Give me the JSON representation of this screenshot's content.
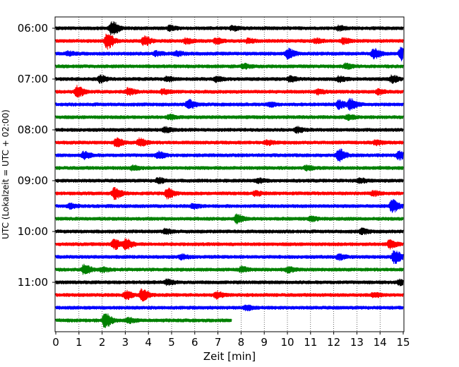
{
  "chart_data": {
    "type": "line",
    "title": "",
    "xlabel": "Zeit  [min]",
    "ylabel": "UTC (Lokalzeit = UTC + 02:00)",
    "xlim": [
      0,
      15
    ],
    "xticks": [
      0,
      1,
      2,
      3,
      4,
      5,
      6,
      7,
      8,
      9,
      10,
      11,
      12,
      13,
      14,
      15
    ],
    "y_tick_labels": [
      "06:00",
      "07:00",
      "08:00",
      "09:00",
      "10:00",
      "11:00"
    ],
    "grid": "vertical dotted lines at each minute",
    "trace_colors": [
      "#000000",
      "#ff0000",
      "#0000ff",
      "#008000"
    ],
    "traces": [
      {
        "label": "06:00",
        "color": "#000000",
        "end_min": 15,
        "events": [
          [
            2.4,
            9
          ],
          [
            4.9,
            2.5
          ],
          [
            7.6,
            2.5
          ],
          [
            12.2,
            2.5
          ]
        ]
      },
      {
        "label": "06:15",
        "color": "#ff0000",
        "end_min": 15,
        "events": [
          [
            2.2,
            10
          ],
          [
            3.8,
            6
          ],
          [
            5.6,
            3
          ],
          [
            6.9,
            3
          ],
          [
            8.3,
            2.5
          ],
          [
            11.2,
            2.5
          ],
          [
            12.4,
            3
          ]
        ]
      },
      {
        "label": "06:30",
        "color": "#0000ff",
        "end_min": 15,
        "events": [
          [
            0.5,
            2.5
          ],
          [
            4.3,
            2.5
          ],
          [
            5.2,
            2.5
          ],
          [
            10.0,
            6
          ],
          [
            13.7,
            6
          ],
          [
            14.9,
            9
          ]
        ]
      },
      {
        "label": "06:45",
        "color": "#008000",
        "end_min": 15,
        "events": [
          [
            12.5,
            3
          ],
          [
            8.1,
            2.5
          ]
        ]
      },
      {
        "label": "07:00",
        "color": "#000000",
        "end_min": 15,
        "events": [
          [
            1.9,
            4
          ],
          [
            4.8,
            2.5
          ],
          [
            6.9,
            3
          ],
          [
            10.1,
            3
          ],
          [
            12.2,
            3
          ],
          [
            14.5,
            4
          ]
        ]
      },
      {
        "label": "07:15",
        "color": "#ff0000",
        "end_min": 15,
        "events": [
          [
            0.9,
            7
          ],
          [
            3.1,
            4
          ],
          [
            4.6,
            2.5
          ],
          [
            11.3,
            3
          ],
          [
            13.9,
            2.5
          ]
        ]
      },
      {
        "label": "07:30",
        "color": "#0000ff",
        "end_min": 15,
        "events": [
          [
            5.7,
            6
          ],
          [
            9.2,
            2.5
          ],
          [
            12.2,
            5
          ],
          [
            12.7,
            7
          ]
        ]
      },
      {
        "label": "07:45",
        "color": "#008000",
        "end_min": 15,
        "events": [
          [
            4.9,
            2.5
          ],
          [
            12.6,
            2.5
          ]
        ]
      },
      {
        "label": "08:00",
        "color": "#000000",
        "end_min": 15,
        "events": [
          [
            4.7,
            3
          ],
          [
            10.4,
            3
          ]
        ]
      },
      {
        "label": "08:15",
        "color": "#ff0000",
        "end_min": 15,
        "events": [
          [
            2.6,
            5
          ],
          [
            3.6,
            5
          ],
          [
            9.1,
            2.5
          ],
          [
            13.8,
            2.5
          ]
        ]
      },
      {
        "label": "08:30",
        "color": "#0000ff",
        "end_min": 15,
        "events": [
          [
            1.2,
            4
          ],
          [
            4.4,
            4
          ],
          [
            12.2,
            8
          ],
          [
            14.8,
            5
          ]
        ]
      },
      {
        "label": "08:45",
        "color": "#008000",
        "end_min": 15,
        "events": [
          [
            3.3,
            2.5
          ],
          [
            10.8,
            2.5
          ]
        ]
      },
      {
        "label": "09:00",
        "color": "#000000",
        "end_min": 15,
        "events": [
          [
            4.4,
            3
          ],
          [
            8.7,
            2.5
          ],
          [
            13.1,
            2.5
          ]
        ]
      },
      {
        "label": "09:15",
        "color": "#ff0000",
        "end_min": 15,
        "events": [
          [
            2.5,
            7
          ],
          [
            4.8,
            6
          ],
          [
            8.6,
            2.5
          ],
          [
            13.7,
            2.5
          ]
        ]
      },
      {
        "label": "09:30",
        "color": "#0000ff",
        "end_min": 15,
        "events": [
          [
            0.6,
            2.5
          ],
          [
            5.9,
            2.5
          ],
          [
            14.5,
            8
          ]
        ]
      },
      {
        "label": "09:45",
        "color": "#008000",
        "end_min": 15,
        "events": [
          [
            7.8,
            5
          ],
          [
            11.0,
            2.5
          ]
        ]
      },
      {
        "label": "10:00",
        "color": "#000000",
        "end_min": 15,
        "events": [
          [
            4.7,
            3
          ],
          [
            13.2,
            3
          ]
        ]
      },
      {
        "label": "10:15",
        "color": "#ff0000",
        "end_min": 15,
        "events": [
          [
            2.5,
            6
          ],
          [
            3.0,
            6
          ],
          [
            14.4,
            5
          ]
        ]
      },
      {
        "label": "10:30",
        "color": "#0000ff",
        "end_min": 15,
        "events": [
          [
            5.4,
            2.5
          ],
          [
            12.2,
            3
          ],
          [
            14.6,
            8
          ]
        ]
      },
      {
        "label": "10:45",
        "color": "#008000",
        "end_min": 15,
        "events": [
          [
            1.2,
            6
          ],
          [
            2.0,
            2.5
          ],
          [
            8.0,
            3
          ],
          [
            10.0,
            3
          ]
        ]
      },
      {
        "label": "11:00",
        "color": "#000000",
        "end_min": 15,
        "events": [
          [
            4.8,
            3
          ],
          [
            14.8,
            3
          ]
        ]
      },
      {
        "label": "11:15",
        "color": "#ff0000",
        "end_min": 15,
        "events": [
          [
            3.0,
            5
          ],
          [
            3.7,
            7
          ],
          [
            6.9,
            4
          ],
          [
            13.7,
            2.5
          ]
        ]
      },
      {
        "label": "11:30",
        "color": "#0000ff",
        "end_min": 15,
        "events": [
          [
            8.2,
            2.5
          ]
        ]
      },
      {
        "label": "11:45",
        "color": "#008000",
        "end_min": 7.6,
        "events": [
          [
            2.1,
            9
          ],
          [
            3.1,
            3
          ]
        ]
      }
    ]
  }
}
